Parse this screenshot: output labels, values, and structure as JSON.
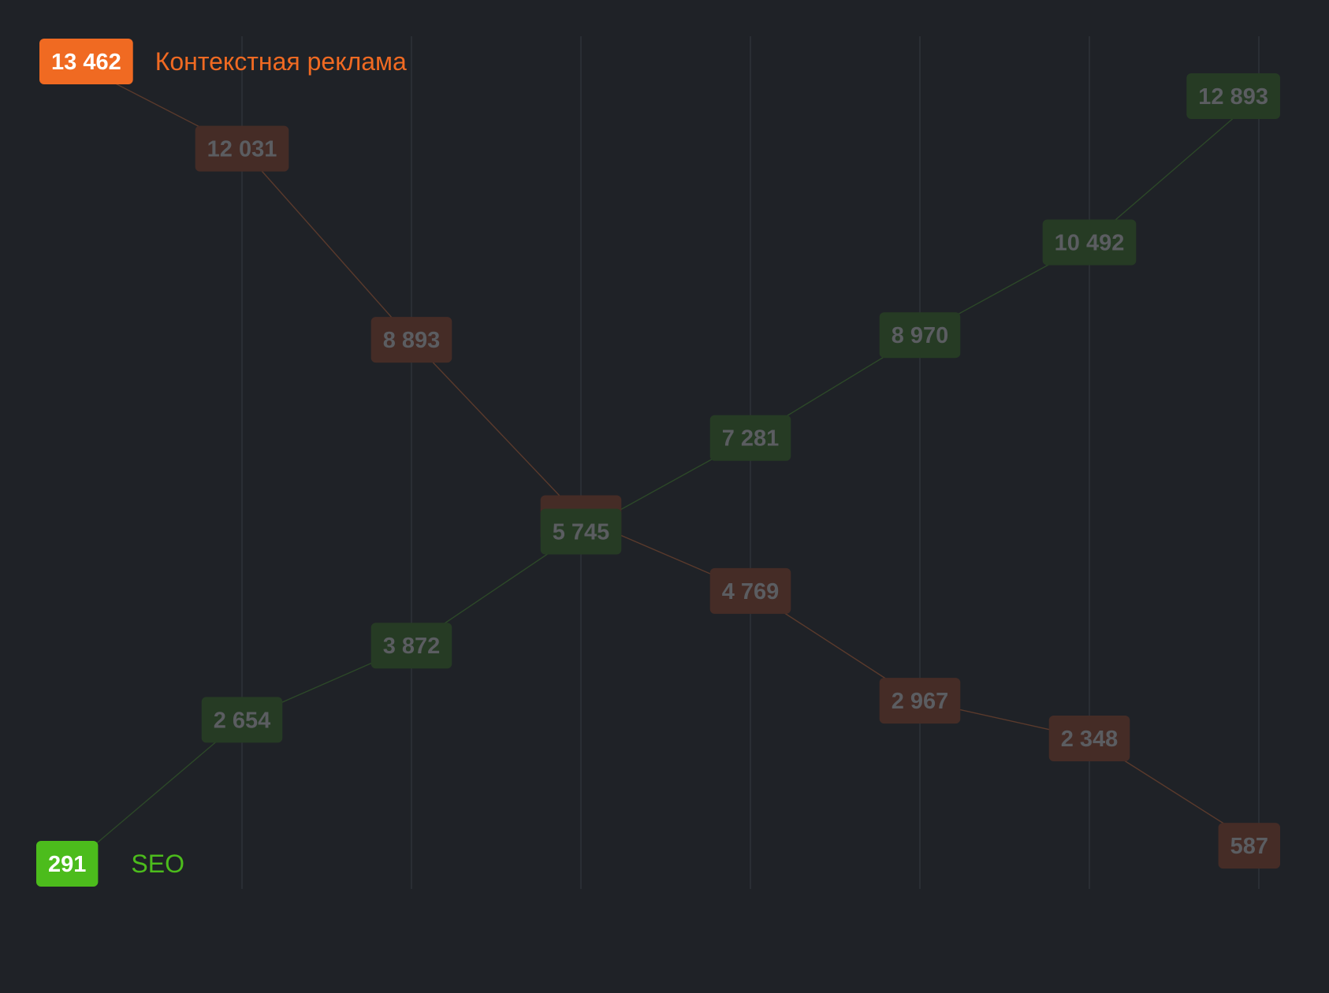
{
  "chart_data": {
    "type": "line",
    "x": [
      0,
      1,
      2,
      3,
      4,
      5,
      6,
      7
    ],
    "series": [
      {
        "name": "Контекстная реклама",
        "color": "#f06a22",
        "dim_box": "#452c26",
        "dim_line": "#5a3a2c",
        "values": [
          13462,
          12031,
          8893,
          5964,
          4769,
          2967,
          2348,
          587
        ],
        "labels": [
          "13 462",
          "12 031",
          "8 893",
          "5 964",
          "4 769",
          "2 967",
          "2 348",
          "587"
        ]
      },
      {
        "name": "SEO",
        "color": "#4cbc1c",
        "dim_box": "#263b24",
        "dim_line": "#2c4828",
        "values": [
          291,
          2654,
          3872,
          5745,
          7281,
          8970,
          10492,
          12893
        ],
        "labels": [
          "291",
          "2 654",
          "3 872",
          "5 745",
          "7 281",
          "8 970",
          "10 492",
          "12 893"
        ]
      }
    ],
    "ylim": [
      0,
      14000
    ],
    "grid": "vertical",
    "dim_text_color": "#5b5d61",
    "active_text_color": "#ffffff"
  }
}
